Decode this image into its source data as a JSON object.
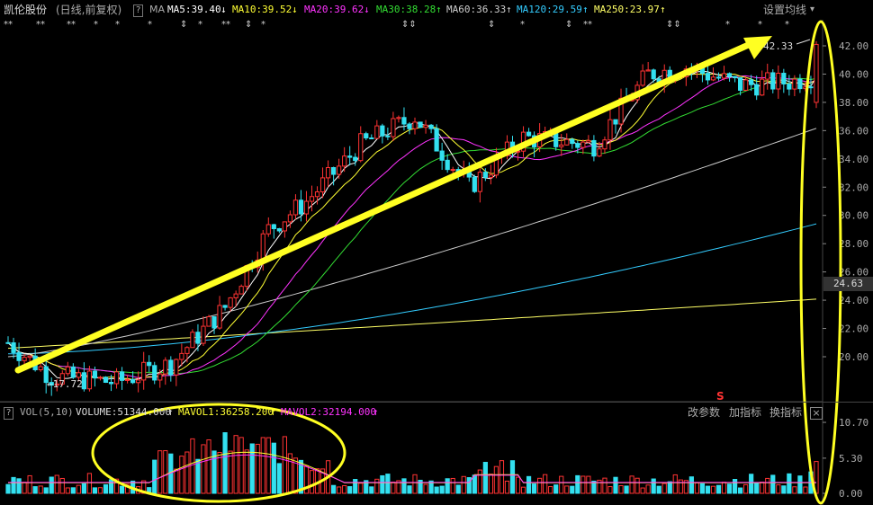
{
  "header": {
    "stock_name": "凯伦股份",
    "period": "(日线,前复权)",
    "help": "?",
    "ma_label": "MA",
    "ma": [
      {
        "label": "MA5:39.40",
        "arrow": "↓",
        "color": "#ffffff"
      },
      {
        "label": "MA10:39.52",
        "arrow": "↓",
        "color": "#ffff33"
      },
      {
        "label": "MA20:39.62",
        "arrow": "↓",
        "color": "#ff33ff"
      },
      {
        "label": "MA30:38.28",
        "arrow": "↑",
        "color": "#33dd33"
      },
      {
        "label": "MA60:36.33",
        "arrow": "↑",
        "color": "#cccccc"
      },
      {
        "label": "MA120:29.59",
        "arrow": "↑",
        "color": "#33ccff"
      },
      {
        "label": "MA250:23.97",
        "arrow": "↑",
        "color": "#ffff66"
      }
    ],
    "settings": "设置均线",
    "settings_caret": "▾"
  },
  "price_axis": [
    "42.00",
    "40.00",
    "38.00",
    "36.00",
    "34.00",
    "32.00",
    "30.00",
    "28.00",
    "26.00",
    "24.00",
    "22.00",
    "20.00"
  ],
  "current_price": "24.63",
  "annotations": {
    "high": "42.33",
    "low": "17.72",
    "signal": "S"
  },
  "volume_panel": {
    "help": "?",
    "indicator": "VOL(5,10)",
    "volume": "VOLUME:51344.000",
    "mavol1": "MAVOL1:36258.200",
    "mavol2": "MAVOL2:32194.000",
    "arrow1": "↑",
    "arrow2": "↑",
    "arrow3": "↑",
    "buttons": [
      "改参数",
      "加指标",
      "换指标"
    ],
    "close": "×",
    "axis": [
      "10.70",
      "5.30",
      "0.00"
    ]
  },
  "colors": {
    "up": "#ff3333",
    "down": "#33e0f0",
    "highlight": "#ffff22"
  },
  "chart_data": {
    "type": "candlestick",
    "ylim": [
      16,
      43.5
    ],
    "high_marker": 42.33,
    "low_marker": 17.72,
    "volume_ylim": [
      0,
      10.7
    ]
  }
}
